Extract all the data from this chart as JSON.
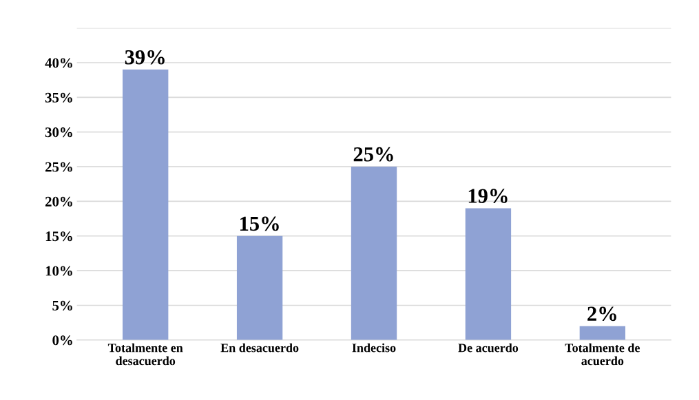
{
  "chart_data": {
    "type": "bar",
    "categories": [
      "Totalmente en\ndesacuerdo",
      "En desacuerdo",
      "Indeciso",
      "De acuerdo",
      "Totalmente de\nacuerdo"
    ],
    "values": [
      39,
      15,
      25,
      19,
      2
    ],
    "color": "#8fa2d4",
    "value_labels": [
      "39%",
      "15%",
      "25%",
      "19%",
      "2%"
    ],
    "ylim": [
      0,
      45
    ],
    "yticks": [
      {
        "value": 0,
        "label": "0%"
      },
      {
        "value": 5,
        "label": "5%"
      },
      {
        "value": 10,
        "label": "10%"
      },
      {
        "value": 15,
        "label": "15%"
      },
      {
        "value": 20,
        "label": "20%"
      },
      {
        "value": 25,
        "label": "25%"
      },
      {
        "value": 30,
        "label": "30%"
      },
      {
        "value": 35,
        "label": "35%"
      },
      {
        "value": 40,
        "label": "40%"
      },
      {
        "value": 45,
        "label": null
      }
    ],
    "grid": "y"
  }
}
